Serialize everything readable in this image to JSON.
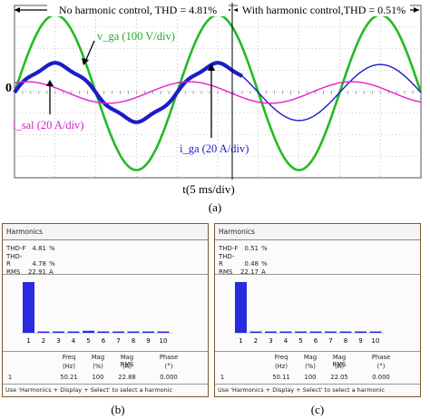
{
  "panel_a": {
    "left_annotation": "No harmonic control, THD = 4.81%",
    "right_annotation": "With harmonic control,THD = 0.51%",
    "zero_label": "0",
    "vga_label": "v_ga (100 V/div)",
    "iga_label": "i_ga (20 A/div)",
    "isa_label": "i_sal (20 A/div)",
    "x_axis_label": "t(5 ms/div)",
    "caption": "(a)"
  },
  "panel_b": {
    "title": "Harmonics",
    "thd_f_label": "THD-F",
    "thd_f_value": "4.81",
    "thd_f_unit": "%",
    "thd_r_label": "THD-R",
    "thd_r_value": "4.78",
    "thd_r_unit": "%",
    "rms_label": "RMS",
    "rms_value": "22.91",
    "rms_unit": "A",
    "harmonic_ticks": [
      "1",
      "2",
      "3",
      "4",
      "5",
      "6",
      "7",
      "8",
      "9",
      "10"
    ],
    "table_headers": [
      "Freq",
      "Mag",
      "Mag RMS",
      "Phase"
    ],
    "table_units": [
      "(Hz)",
      "(%)",
      "(A)",
      "(°)"
    ],
    "table_row": [
      "1",
      "50.21",
      "100",
      "22.88",
      "0.000"
    ],
    "footer": "Use 'Harmonics + Display + Select' to select a harmonic",
    "caption": "(b)"
  },
  "panel_c": {
    "title": "Harmonics",
    "thd_f_label": "THD-F",
    "thd_f_value": "0.51",
    "thd_f_unit": "%",
    "thd_r_label": "THD-R",
    "thd_r_value": "0.48",
    "thd_r_unit": "%",
    "rms_label": "RMS",
    "rms_value": "22.17",
    "rms_unit": "A",
    "harmonic_ticks": [
      "1",
      "2",
      "3",
      "4",
      "5",
      "6",
      "7",
      "8",
      "9",
      "10"
    ],
    "table_headers": [
      "Freq",
      "Mag",
      "Mag RMS",
      "Phase"
    ],
    "table_units": [
      "(Hz)",
      "(%)",
      "(A)",
      "(°)"
    ],
    "table_row": [
      "1",
      "50.11",
      "100",
      "22.05",
      "0.000"
    ],
    "footer": "Use 'Harmonics + Display + Select' to select a harmonic",
    "caption": "(c)"
  },
  "chart_data": [
    {
      "type": "line",
      "title": "",
      "xlabel": "t(5 ms/div)",
      "grid": true,
      "x_divisions": 10,
      "y_divisions": 8,
      "colors": {
        "v_ga": "#22bb22",
        "i_ga": "#1c1cc8",
        "i_sal": "#e020d0"
      },
      "series": [
        {
          "name": "v_ga (100 V/div)",
          "waveform": "sine",
          "period_div": 4,
          "amplitude_div": 3.6,
          "peak_time_div": [
            1.0,
            5.0,
            9.0
          ]
        },
        {
          "name": "i_ga (20 A/div)",
          "waveform": "sine",
          "period_div": 4,
          "amplitude_div": 1.3,
          "peak_time_div": [
            1.0,
            5.0,
            9.0
          ],
          "distorted_until_div": 5.6
        },
        {
          "name": "i_sal (20 A/div)",
          "waveform": "sine",
          "period_div": 4,
          "amplitude_div": 0.5,
          "peak_time_div": [
            0.3,
            4.3,
            8.3
          ]
        }
      ]
    },
    {
      "type": "bar",
      "title": "Harmonics",
      "categories": [
        "1",
        "2",
        "3",
        "4",
        "5",
        "6",
        "7",
        "8",
        "9",
        "10"
      ],
      "values": [
        100,
        0.5,
        1.5,
        0.3,
        4.0,
        0.3,
        1.5,
        0.2,
        0.2,
        0.2
      ],
      "ylabel": "Mag (%)",
      "ylim": [
        0,
        100
      ],
      "color": "#2a2ae0"
    },
    {
      "type": "bar",
      "title": "Harmonics",
      "categories": [
        "1",
        "2",
        "3",
        "4",
        "5",
        "6",
        "7",
        "8",
        "9",
        "10"
      ],
      "values": [
        100,
        0.2,
        0.4,
        0.1,
        0.3,
        0.1,
        0.3,
        0.1,
        0.1,
        0.1
      ],
      "ylabel": "Mag (%)",
      "ylim": [
        0,
        100
      ],
      "color": "#2a2ae0"
    }
  ]
}
